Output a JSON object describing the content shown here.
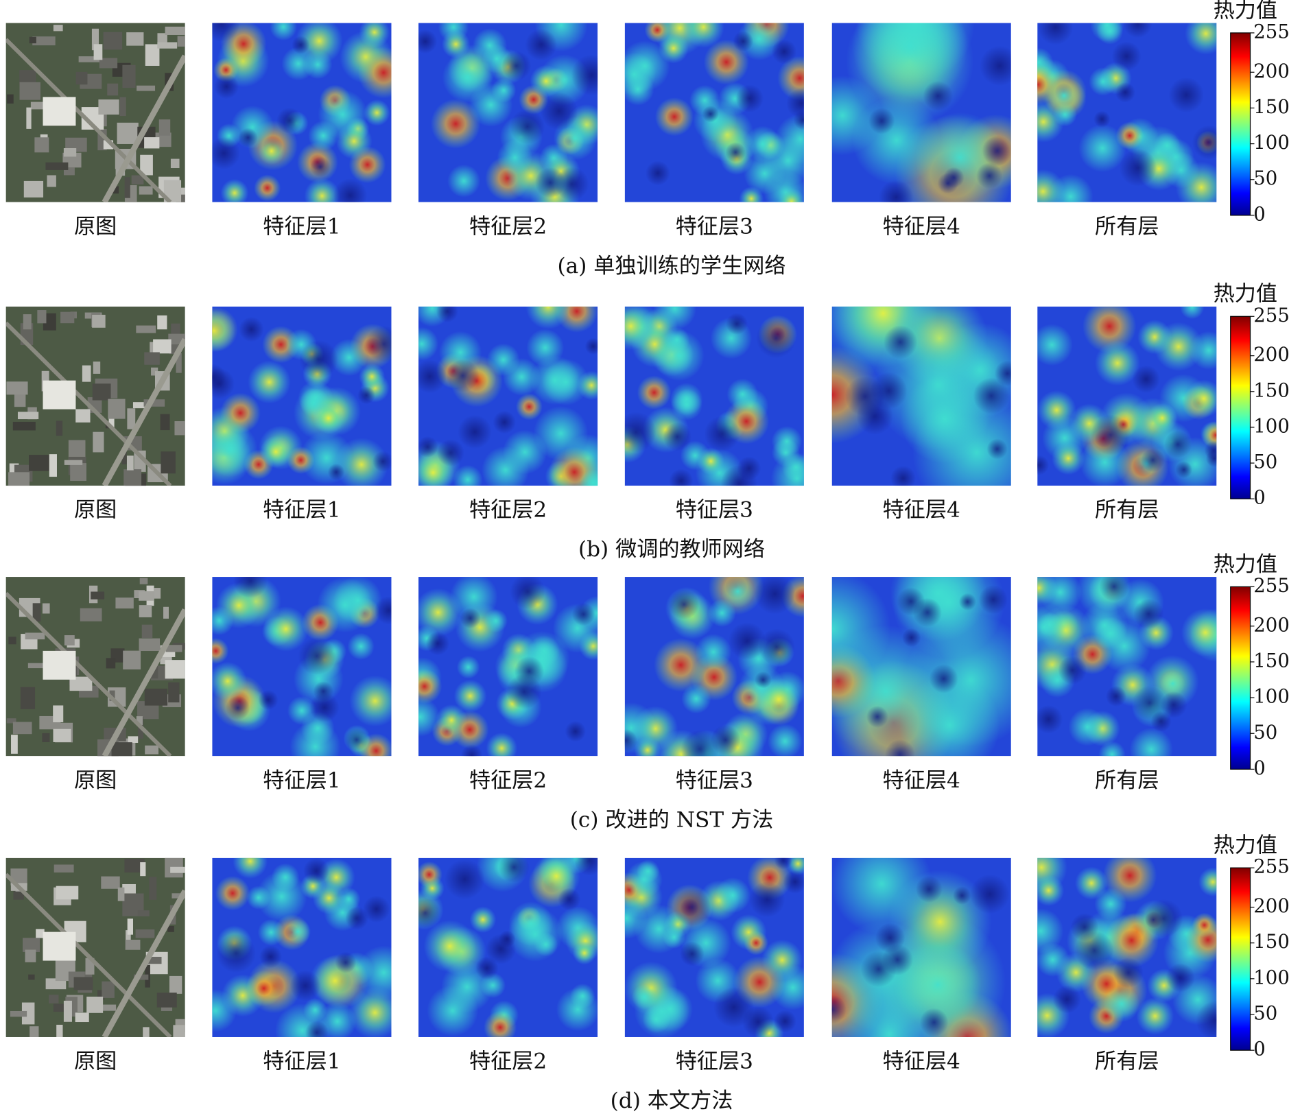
{
  "rows": [
    {
      "caption": "(a) 单独训练的学生网络",
      "panels": [
        "原图",
        "特征层1",
        "特征层2",
        "特征层3",
        "特征层4",
        "所有层"
      ],
      "colorbar": {
        "title": "热力值",
        "range": [
          0,
          255
        ],
        "ticks": [
          0,
          50,
          100,
          150,
          200,
          255
        ]
      }
    },
    {
      "caption": "(b) 微调的教师网络",
      "panels": [
        "原图",
        "特征层1",
        "特征层2",
        "特征层3",
        "特征层4",
        "所有层"
      ],
      "colorbar": {
        "title": "热力值",
        "range": [
          0,
          255
        ],
        "ticks": [
          0,
          50,
          100,
          150,
          200,
          255
        ]
      }
    },
    {
      "caption": "(c) 改进的 NST 方法",
      "panels": [
        "原图",
        "特征层1",
        "特征层2",
        "特征层3",
        "特征层4",
        "所有层"
      ],
      "colorbar": {
        "title": "热力值",
        "range": [
          0,
          255
        ],
        "ticks": [
          0,
          50,
          100,
          150,
          200,
          255
        ]
      }
    },
    {
      "caption": "(d) 本文方法",
      "panels": [
        "原图",
        "特征层1",
        "特征层2",
        "特征层3",
        "特征层4",
        "所有层"
      ],
      "colorbar": {
        "title": "热力值",
        "range": [
          0,
          255
        ],
        "ticks": [
          0,
          50,
          100,
          150,
          200,
          255
        ]
      }
    }
  ]
}
